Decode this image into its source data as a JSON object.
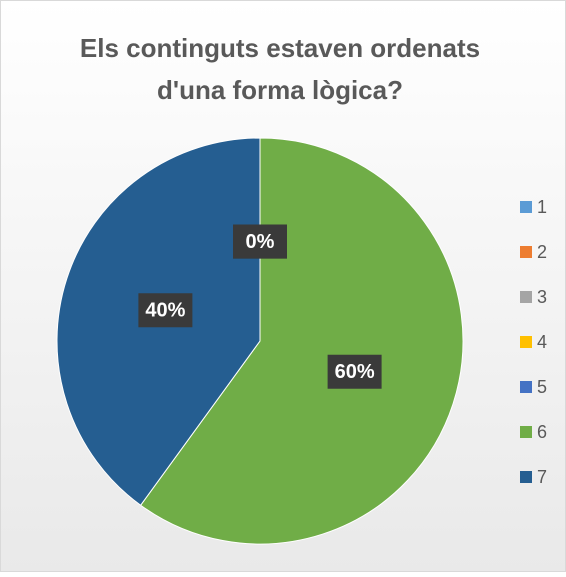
{
  "chart_data": {
    "type": "pie",
    "title": [
      "Els continguts estaven ordenats",
      "d'una forma lògica?"
    ],
    "categories": [
      "1",
      "2",
      "3",
      "4",
      "5",
      "6",
      "7"
    ],
    "values": [
      0,
      0,
      0,
      0,
      0,
      60,
      40
    ],
    "value_labels": [
      "0%",
      "0%",
      "0%",
      "0%",
      "0%",
      "60%",
      "40%"
    ],
    "colors": [
      "#5b9bd5",
      "#ed7d31",
      "#a5a5a5",
      "#ffc000",
      "#4472c4",
      "#70ad47",
      "#255e91"
    ],
    "legend": "right"
  }
}
